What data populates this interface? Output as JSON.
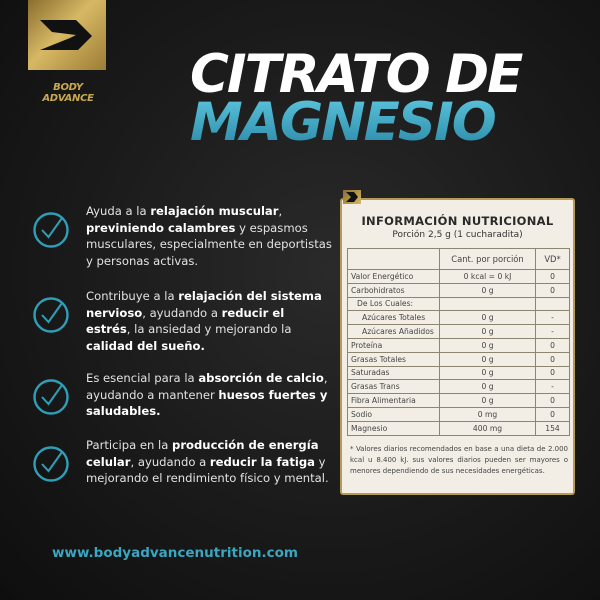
{
  "brand": {
    "name": "BODY ADVANCE",
    "gold": "#c9a94f",
    "accent": "#3aa6c2"
  },
  "title": {
    "line1": "CITRATO DE",
    "line2": "MAGNESIO"
  },
  "benefits": [
    {
      "icon": "check-circle-icon",
      "segments": [
        {
          "text": "Ayuda a la ",
          "bold": false
        },
        {
          "text": "relajación muscular",
          "bold": true
        },
        {
          "text": ", ",
          "bold": false
        },
        {
          "text": "previniendo calambres",
          "bold": true
        },
        {
          "text": " y espasmos musculares, especialmente en deportistas y personas activas.",
          "bold": false
        }
      ]
    },
    {
      "icon": "check-circle-icon",
      "segments": [
        {
          "text": "Contribuye a la ",
          "bold": false
        },
        {
          "text": "relajación del sistema nervioso",
          "bold": true
        },
        {
          "text": ", ayudando a ",
          "bold": false
        },
        {
          "text": "reducir el estrés",
          "bold": true
        },
        {
          "text": ", la ansiedad y mejorando la ",
          "bold": false
        },
        {
          "text": "calidad del sueño.",
          "bold": true
        }
      ]
    },
    {
      "icon": "check-circle-icon",
      "segments": [
        {
          "text": "Es esencial para la ",
          "bold": false
        },
        {
          "text": "absorción de calcio",
          "bold": true
        },
        {
          "text": ", ayudando a mantener ",
          "bold": false
        },
        {
          "text": "huesos fuertes y saludables.",
          "bold": true
        }
      ]
    },
    {
      "icon": "check-circle-icon",
      "segments": [
        {
          "text": "Participa en la ",
          "bold": false
        },
        {
          "text": "producción de energía celular",
          "bold": true
        },
        {
          "text": ", ayudando a ",
          "bold": false
        },
        {
          "text": "reducir la fatiga",
          "bold": true
        },
        {
          "text": " y mejorando el rendimiento físico y mental.",
          "bold": false
        }
      ]
    }
  ],
  "nutrition": {
    "title": "INFORMACIÓN NUTRICIONAL",
    "serving": "Porción 2,5 g (1 cucharadita)",
    "headers": [
      "",
      "Cant. por porción",
      "VD*"
    ],
    "rows": [
      {
        "name": "Valor Energético",
        "amount": "0 kcal = 0 kJ",
        "dv": "0",
        "indent": 0
      },
      {
        "name": "Carbohidratos",
        "amount": "0 g",
        "dv": "0",
        "indent": 0
      },
      {
        "name": "De Los Cuales:",
        "amount": "",
        "dv": "",
        "indent": 1
      },
      {
        "name": "Azúcares Totales",
        "amount": "0 g",
        "dv": "-",
        "indent": 2
      },
      {
        "name": "Azúcares Añadidos",
        "amount": "0 g",
        "dv": "-",
        "indent": 2
      },
      {
        "name": "Proteína",
        "amount": "0 g",
        "dv": "0",
        "indent": 0
      },
      {
        "name": "Grasas Totales",
        "amount": "0 g",
        "dv": "0",
        "indent": 0
      },
      {
        "name": "Saturadas",
        "amount": "0 g",
        "dv": "0",
        "indent": 0
      },
      {
        "name": "Grasas Trans",
        "amount": "0 g",
        "dv": "-",
        "indent": 0
      },
      {
        "name": "Fibra Alimentaria",
        "amount": "0 g",
        "dv": "0",
        "indent": 0
      },
      {
        "name": "Sodio",
        "amount": "0 mg",
        "dv": "0",
        "indent": 0
      },
      {
        "name": "Magnesio",
        "amount": "400 mg",
        "dv": "154",
        "indent": 0
      }
    ],
    "note": "* Valores diarios recomendados en base a una dieta de 2.000 kcal u 8.400 kJ. sus valores diarios pueden ser mayores o menores dependiendo de sus necesidades energéticas."
  },
  "footer": {
    "url": "www.bodyadvancenutrition.com"
  }
}
